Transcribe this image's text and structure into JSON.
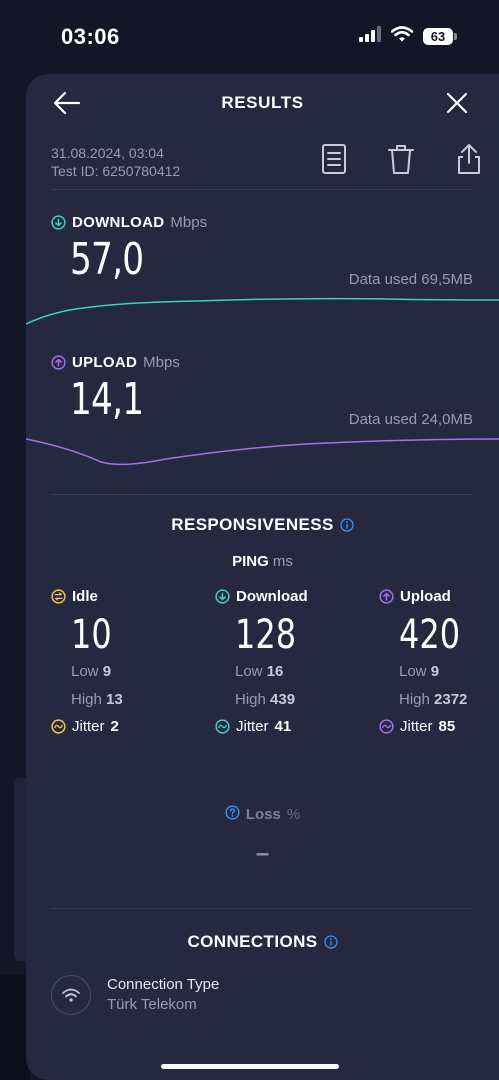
{
  "status_bar": {
    "time": "03:06",
    "battery": "63"
  },
  "header": {
    "title": "RESULTS"
  },
  "meta": {
    "date": "31.08.2024, 03:04",
    "test_id": "Test ID: 6250780412"
  },
  "download": {
    "label": "DOWNLOAD",
    "unit": "Mbps",
    "value": "57,0",
    "data_used": "Data used 69,5MB"
  },
  "upload": {
    "label": "UPLOAD",
    "unit": "Mbps",
    "value": "14,1",
    "data_used": "Data used 24,0MB"
  },
  "responsiveness": {
    "title": "RESPONSIVENESS",
    "ping_label": "PING",
    "ping_unit": "ms",
    "columns": [
      {
        "label": "Idle",
        "value": "10",
        "low_label": "Low",
        "low": "9",
        "high_label": "High",
        "high": "13",
        "jitter_label": "Jitter",
        "jitter": "2"
      },
      {
        "label": "Download",
        "value": "128",
        "low_label": "Low",
        "low": "16",
        "high_label": "High",
        "high": "439",
        "jitter_label": "Jitter",
        "jitter": "41"
      },
      {
        "label": "Upload",
        "value": "420",
        "low_label": "Low",
        "low": "9",
        "high_label": "High",
        "high": "2372",
        "jitter_label": "Jitter",
        "jitter": "85"
      }
    ]
  },
  "loss": {
    "label": "Loss",
    "unit": "%",
    "value": "–"
  },
  "connections": {
    "title": "CONNECTIONS",
    "type_label": "Connection Type",
    "provider": "Türk Telekom"
  },
  "colors": {
    "download": "#3fd1c4",
    "upload": "#a56ff0",
    "idle": "#f2c94c",
    "info": "#3b8ff5"
  }
}
